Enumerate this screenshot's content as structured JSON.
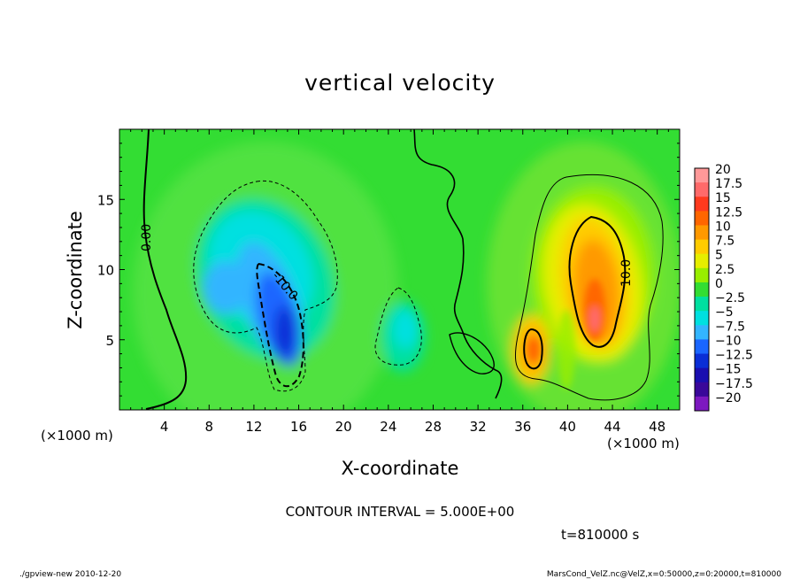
{
  "chart_data": {
    "type": "heatmap",
    "title": "vertical velocity",
    "xlabel": "X-coordinate",
    "ylabel": "Z-coordinate",
    "x_unit": "(×1000 m)",
    "y_unit": "(×1000 m)",
    "xlim": [
      0,
      50
    ],
    "ylim": [
      0,
      20
    ],
    "x_ticks": [
      {
        "value": 4,
        "label": "4"
      },
      {
        "value": 8,
        "label": "8"
      },
      {
        "value": 12,
        "label": "12"
      },
      {
        "value": 16,
        "label": "16"
      },
      {
        "value": 20,
        "label": "20"
      },
      {
        "value": 24,
        "label": "24"
      },
      {
        "value": 28,
        "label": "28"
      },
      {
        "value": 32,
        "label": "32"
      },
      {
        "value": 36,
        "label": "36"
      },
      {
        "value": 40,
        "label": "40"
      },
      {
        "value": 44,
        "label": "44"
      },
      {
        "value": 48,
        "label": "48"
      }
    ],
    "y_ticks": [
      {
        "value": 5,
        "label": "5"
      },
      {
        "value": 10,
        "label": "10"
      },
      {
        "value": 15,
        "label": "15"
      }
    ],
    "colorbar": {
      "labels": [
        "20",
        "17.5",
        "15",
        "12.5",
        "10",
        "7.5",
        "5",
        "2.5",
        "0",
        "−2.5",
        "−5",
        "−7.5",
        "−10",
        "−12.5",
        "−15",
        "−17.5",
        "−20"
      ],
      "colors": [
        "#ff9999",
        "#ff6a6a",
        "#ff3a1e",
        "#ff6600",
        "#ff9900",
        "#ffcc00",
        "#e6ee00",
        "#99ee00",
        "#33dd33",
        "#00e0a0",
        "#00e0e0",
        "#33b5ff",
        "#1a66ff",
        "#0a2ed6",
        "#1a0fb0",
        "#3a089a",
        "#7d18c0"
      ]
    },
    "contour_interval": "CONTOUR INTERVAL = 5.000E+00",
    "contour_labels": [
      "0.00",
      "-10.0",
      "10.0"
    ],
    "time_label": "t=810000 s",
    "features": [
      {
        "name": "downdraft",
        "center": [
          14.5,
          6.0
        ],
        "peak": -13
      },
      {
        "name": "weak downdraft",
        "center": [
          10,
          8.5
        ],
        "peak": -5
      },
      {
        "name": "weak downdraft",
        "center": [
          25.5,
          5.5
        ],
        "peak": -6
      },
      {
        "name": "updraft",
        "center": [
          42.5,
          7.0
        ],
        "peak": 15
      },
      {
        "name": "updraft",
        "center": [
          37.0,
          4.5
        ],
        "peak": 12
      }
    ]
  },
  "footer": {
    "left": "./gpview-new  2010-12-20",
    "right": "MarsCond_VelZ.nc@VelZ,x=0:50000,z=0:20000,t=810000"
  }
}
